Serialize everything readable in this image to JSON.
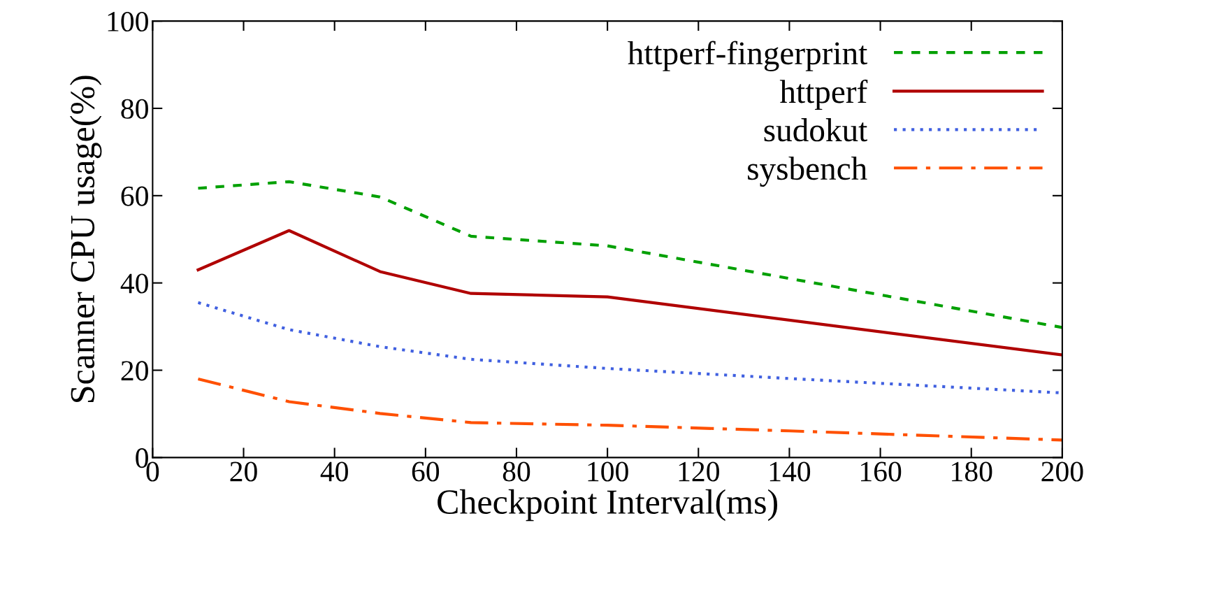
{
  "chart_data": {
    "type": "line",
    "xlabel": "Checkpoint Interval(ms)",
    "ylabel": "Scanner CPU usage(%)",
    "xlim": [
      0,
      200
    ],
    "xticks": [
      0,
      20,
      40,
      60,
      80,
      100,
      120,
      140,
      160,
      180,
      200
    ],
    "ylim": [
      0,
      100
    ],
    "yticks": [
      0,
      20,
      40,
      60,
      80,
      100
    ],
    "grid": false,
    "legend": "top right",
    "marker": "none",
    "series": [
      {
        "name": "httperf-fingerprint",
        "color": "#00a000",
        "line_style": "dashed",
        "x": [
          10,
          30,
          50,
          70,
          100,
          200
        ],
        "values": [
          61.7,
          63.2,
          59.7,
          50.7,
          48.5,
          29.8
        ]
      },
      {
        "name": "httperf",
        "color": "#b00000",
        "line_style": "solid",
        "x": [
          10,
          30,
          50,
          70,
          100,
          200
        ],
        "values": [
          43,
          52,
          42.6,
          37.6,
          36.8,
          23.5
        ]
      },
      {
        "name": "sudokut",
        "color": "#4060e0",
        "line_style": "dotted",
        "x": [
          10,
          30,
          50,
          70,
          100,
          140,
          160,
          200
        ],
        "values": [
          35.5,
          29.3,
          25.4,
          22.5,
          20.4,
          18.1,
          17.0,
          14.8
        ]
      },
      {
        "name": "sysbench",
        "color": "#ff5000",
        "line_style": "dashdot",
        "x": [
          10,
          30,
          50,
          70,
          100,
          140,
          200
        ],
        "values": [
          18,
          12.8,
          10.1,
          8.0,
          7.4,
          6.1,
          4.0
        ]
      }
    ]
  }
}
